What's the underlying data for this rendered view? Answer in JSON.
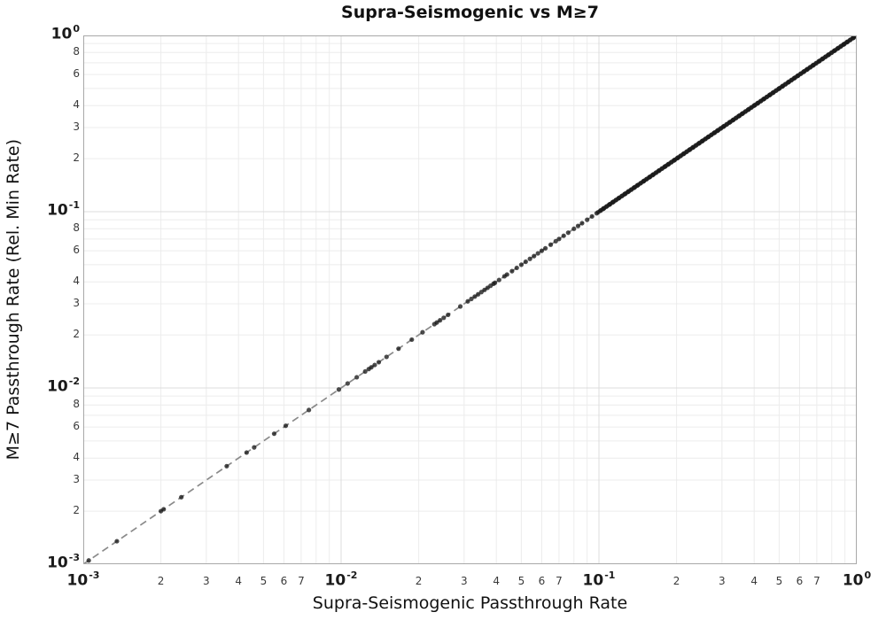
{
  "chart_data": {
    "type": "scatter",
    "title": "Supra-Seismogenic vs M≥7",
    "xlabel": "Supra-Seismogenic Passthrough Rate",
    "ylabel": "M≥7 Passthrough Rate (Rel. Min Rate)",
    "xscale": "log",
    "yscale": "log",
    "xlim": [
      0.001,
      1.0
    ],
    "ylim": [
      0.001,
      1.0
    ],
    "grid": true,
    "legend": false,
    "relation": "all scatter points lie on the y = x diagonal (M≥7 rate equals supra-seismogenic rate)",
    "reference_line": {
      "shape": "y = x",
      "from": 0.001,
      "to": 1.0,
      "style": "dashed",
      "color": "#8a8a8a"
    },
    "points_on_diagonal": [
      0.00105,
      0.00135,
      0.002,
      0.00205,
      0.0024,
      0.0036,
      0.0043,
      0.0046,
      0.0055,
      0.0061,
      0.0075,
      0.0098,
      0.0106,
      0.0115,
      0.0124,
      0.0128,
      0.0131,
      0.0135,
      0.014,
      0.015,
      0.0167,
      0.0188,
      0.0207,
      0.023,
      0.0235,
      0.0242,
      0.025,
      0.026,
      0.029,
      0.031,
      0.032,
      0.033,
      0.034,
      0.035,
      0.036,
      0.037,
      0.038,
      0.039,
      0.0395,
      0.041,
      0.043,
      0.044,
      0.046,
      0.048,
      0.05,
      0.052,
      0.054,
      0.056,
      0.058,
      0.06,
      0.062,
      0.065,
      0.068,
      0.07,
      0.073,
      0.076,
      0.08,
      0.083,
      0.086,
      0.09,
      0.094,
      0.098
    ],
    "dense_band": {
      "from": 0.1,
      "to": 1.0,
      "count": 220,
      "note": "points so dense from ~0.1 to 1.0 that they merge into a solid black band along the diagonal"
    },
    "x_ticks": {
      "major_exponents": [
        -3,
        -2,
        -1,
        0
      ],
      "major_labels": [
        "10^-3",
        "10^-2",
        "10^-1",
        "10^0"
      ],
      "minor_labeled_subs": [
        2,
        3,
        4,
        5,
        6,
        7
      ],
      "minor_label_decades": [
        -3,
        -2,
        -1
      ]
    },
    "y_ticks": {
      "major_exponents": [
        0,
        -1,
        -2,
        -3
      ],
      "major_labels": [
        "10^0",
        "10^-1",
        "10^-2",
        "10^-3"
      ],
      "minor_labeled_subs": [
        8,
        6,
        4,
        3,
        2
      ],
      "minor_label_decades": [
        -1,
        -2,
        -3
      ]
    },
    "grid_subs": [
      2,
      3,
      4,
      5,
      6,
      7,
      8,
      9
    ],
    "style": {
      "point_color": "#1a1a1a",
      "point_opacity": 0.78,
      "point_radius": 2.6,
      "dashed_line_color": "#8a8a8a",
      "major_grid_color": "#dddddd",
      "minor_grid_color": "#ececec",
      "spine_color": "#a8a8a8",
      "background": "#ffffff"
    }
  }
}
